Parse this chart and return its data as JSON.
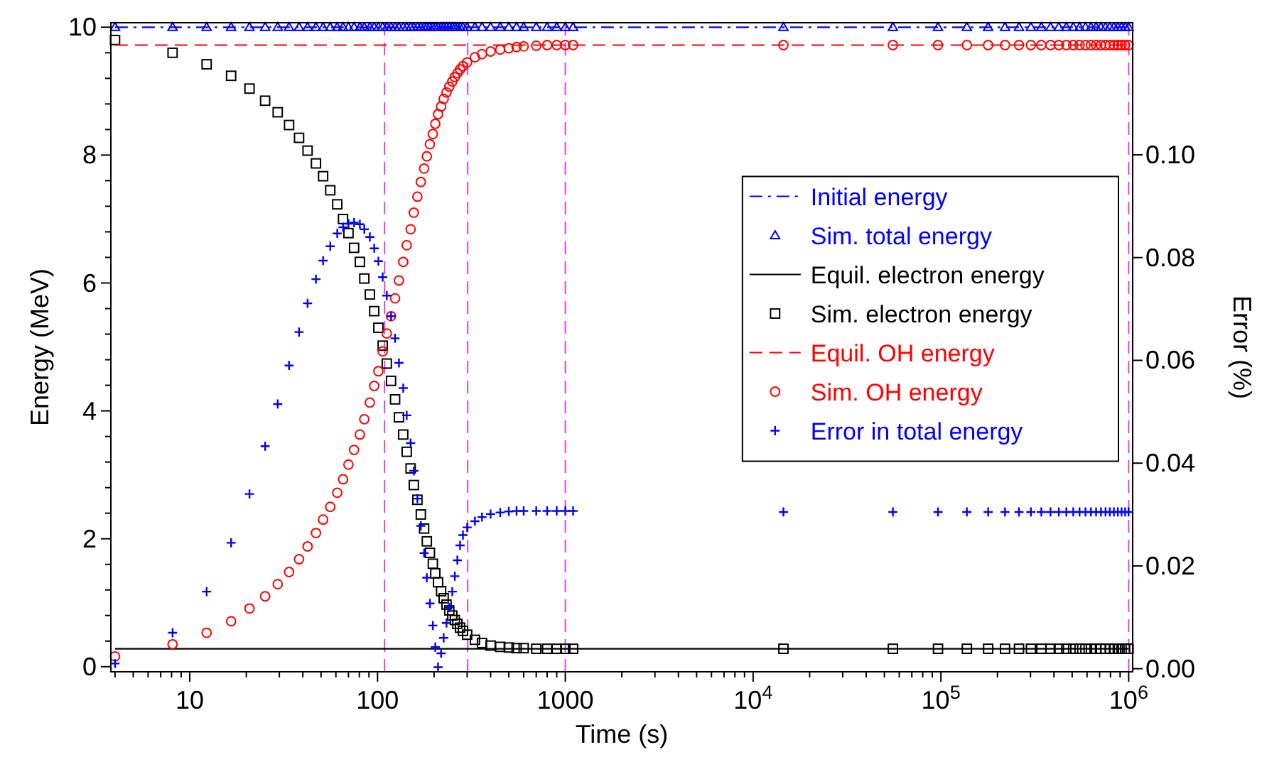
{
  "chart_data": {
    "type": "scatter",
    "xlabel": "Time (s)",
    "ylabel": "Energy (MeV)",
    "y2label": "Error (%)",
    "log": "x",
    "legend": "right",
    "grid": false,
    "xlim": [
      3.8,
      1050000
    ],
    "ylim": [
      -0.08,
      10.07
    ],
    "y2lim": [
      -0.0006,
      0.1257
    ],
    "xticks": [
      {
        "value": 4,
        "label": null
      },
      {
        "value": 5,
        "label": null
      },
      {
        "value": 6,
        "label": null
      },
      {
        "value": 7,
        "label": null
      },
      {
        "value": 8,
        "label": null
      },
      {
        "value": 9,
        "label": null
      },
      10,
      {
        "value": 20,
        "label": null
      },
      {
        "value": 30,
        "label": null
      },
      {
        "value": 40,
        "label": null
      },
      {
        "value": 50,
        "label": null
      },
      {
        "value": 60,
        "label": null
      },
      {
        "value": 70,
        "label": null
      },
      {
        "value": 80,
        "label": null
      },
      {
        "value": 90,
        "label": null
      },
      100,
      {
        "value": 200,
        "label": null
      },
      {
        "value": 300,
        "label": null
      },
      {
        "value": 400,
        "label": null
      },
      {
        "value": 500,
        "label": null
      },
      {
        "value": 600,
        "label": null
      },
      {
        "value": 700,
        "label": null
      },
      {
        "value": 800,
        "label": null
      },
      {
        "value": 900,
        "label": null
      },
      1000,
      {
        "value": 2000,
        "label": null
      },
      {
        "value": 3000,
        "label": null
      },
      {
        "value": 4000,
        "label": null
      },
      {
        "value": 5000,
        "label": null
      },
      {
        "value": 6000,
        "label": null
      },
      {
        "value": 7000,
        "label": null
      },
      {
        "value": 8000,
        "label": null
      },
      {
        "value": 9000,
        "label": null
      },
      {
        "value": 10000,
        "label": "10$^{4}$"
      },
      {
        "value": 20000,
        "label": null
      },
      {
        "value": 30000,
        "label": null
      },
      {
        "value": 40000,
        "label": null
      },
      {
        "value": 50000,
        "label": null
      },
      {
        "value": 60000,
        "label": null
      },
      {
        "value": 70000,
        "label": null
      },
      {
        "value": 80000,
        "label": null
      },
      {
        "value": 90000,
        "label": null
      },
      {
        "value": 100000,
        "label": "10$^{5}$"
      },
      {
        "value": 200000,
        "label": null
      },
      {
        "value": 300000,
        "label": null
      },
      {
        "value": 400000,
        "label": null
      },
      {
        "value": 500000,
        "label": null
      },
      {
        "value": 600000,
        "label": null
      },
      {
        "value": 700000,
        "label": null
      },
      {
        "value": 800000,
        "label": null
      },
      {
        "value": 900000,
        "label": null
      },
      {
        "value": 1000000,
        "label": "10$^{6}$"
      }
    ],
    "yticks": [
      0,
      {
        "value": 0.4,
        "label": null
      },
      {
        "value": 0.8,
        "label": null
      },
      {
        "value": 1.2,
        "label": null
      },
      {
        "value": 1.6,
        "label": null
      },
      2,
      {
        "value": 2.4,
        "label": null
      },
      {
        "value": 2.8,
        "label": null
      },
      {
        "value": 3.2,
        "label": null
      },
      {
        "value": 3.6,
        "label": null
      },
      4,
      {
        "value": 4.4,
        "label": null
      },
      {
        "value": 4.8,
        "label": null
      },
      {
        "value": 5.2,
        "label": null
      },
      {
        "value": 5.6,
        "label": null
      },
      6,
      {
        "value": 6.4,
        "label": null
      },
      {
        "value": 6.8,
        "label": null
      },
      {
        "value": 7.2,
        "label": null
      },
      {
        "value": 7.6,
        "label": null
      },
      8,
      {
        "value": 8.4,
        "label": null
      },
      {
        "value": 8.8,
        "label": null
      },
      {
        "value": 9.2,
        "label": null
      },
      {
        "value": 9.6,
        "label": null
      },
      10
    ],
    "y2ticks": [
      {
        "value": 0,
        "label": "0.00"
      },
      {
        "value": 0.02,
        "label": "0.02"
      },
      {
        "value": 0.04,
        "label": "0.04"
      },
      {
        "value": 0.06,
        "label": "0.06"
      },
      {
        "value": 0.08,
        "label": "0.08"
      },
      {
        "value": 0.1,
        "label": "0.10"
      }
    ],
    "x": [
      4,
      8.1,
      12.3,
      16.6,
      20.8,
      25.2,
      29.4,
      33.8,
      38.2,
      42.4,
      47,
      51.3,
      56,
      61,
      65.5,
      70,
      75,
      80.5,
      85,
      91,
      96,
      101,
      106.5,
      112,
      118,
      124,
      130,
      137,
      143,
      150,
      156,
      163,
      170,
      177,
      183,
      190,
      197,
      203,
      210,
      218,
      225,
      233,
      241,
      250,
      258,
      266,
      275,
      285,
      300,
      330,
      360,
      400,
      450,
      500,
      550,
      600,
      700,
      800,
      900,
      1000,
      1100,
      14500,
      55500,
      96500,
      137500,
      178500,
      219500,
      260500,
      301500,
      342500,
      383500,
      424500,
      465500,
      506500,
      547500,
      588500,
      629500,
      670500,
      711500,
      752500,
      793500,
      834500,
      875500,
      916500,
      957500,
      998500
    ],
    "ref_lines": [
      {
        "axis": "x",
        "value": 109,
        "color": "#dd44dd",
        "line_style": "dashed"
      },
      {
        "axis": "x",
        "value": 302,
        "color": "#dd44dd",
        "line_style": "dashed"
      },
      {
        "axis": "x",
        "value": 1000,
        "color": "#dd44dd",
        "line_style": "dashed"
      },
      {
        "axis": "x",
        "value": 1000000,
        "color": "#dd44dd",
        "line_style": "dashed"
      }
    ],
    "series": [
      {
        "name": "Initial energy",
        "type": "line",
        "color": "#0000ff",
        "line_style": "dashdot",
        "marker": "none",
        "values": [
          10,
          10,
          10,
          10,
          10,
          10,
          10,
          10,
          10,
          10,
          10,
          10,
          10,
          10,
          10,
          10,
          10,
          10,
          10,
          10,
          10,
          10,
          10,
          10,
          10,
          10,
          10,
          10,
          10,
          10,
          10,
          10,
          10,
          10,
          10,
          10,
          10,
          10,
          10,
          10,
          10,
          10,
          10,
          10,
          10,
          10,
          10,
          10,
          10,
          10,
          10,
          10,
          10,
          10,
          10,
          10,
          10,
          10,
          10,
          10,
          10,
          10,
          10,
          10,
          10,
          10,
          10,
          10,
          10,
          10,
          10,
          10,
          10,
          10,
          10,
          10,
          10,
          10,
          10,
          10,
          10,
          10,
          10,
          10,
          10,
          10
        ]
      },
      {
        "name": "Sim. total energy",
        "color": "#0000ff",
        "marker": "triangle",
        "values": [
          10,
          10,
          10,
          10,
          10,
          10,
          10,
          10,
          10,
          10,
          10,
          10,
          10,
          10,
          10,
          10,
          10,
          10,
          10,
          10,
          10,
          10,
          10,
          10,
          10,
          10,
          10,
          10,
          10,
          10,
          10,
          10,
          10,
          10,
          10,
          10,
          10,
          10,
          10,
          10,
          10,
          10,
          10,
          10,
          10,
          10,
          10,
          10,
          10,
          10,
          10,
          10,
          10,
          10,
          10,
          10,
          10,
          10,
          10,
          10,
          10,
          10,
          10,
          10,
          10,
          10,
          10,
          10,
          10,
          10,
          10,
          10,
          10,
          10,
          10,
          10,
          10,
          10,
          10,
          10,
          10,
          10,
          10,
          10,
          10,
          10
        ]
      },
      {
        "name": "Equil. electron energy",
        "type": "line",
        "color": "#000000",
        "line_style": "solid",
        "marker": "none",
        "values": [
          0.28,
          0.28,
          0.28,
          0.28,
          0.28,
          0.28,
          0.28,
          0.28,
          0.28,
          0.28,
          0.28,
          0.28,
          0.28,
          0.28,
          0.28,
          0.28,
          0.28,
          0.28,
          0.28,
          0.28,
          0.28,
          0.28,
          0.28,
          0.28,
          0.28,
          0.28,
          0.28,
          0.28,
          0.28,
          0.28,
          0.28,
          0.28,
          0.28,
          0.28,
          0.28,
          0.28,
          0.28,
          0.28,
          0.28,
          0.28,
          0.28,
          0.28,
          0.28,
          0.28,
          0.28,
          0.28,
          0.28,
          0.28,
          0.28,
          0.28,
          0.28,
          0.28,
          0.28,
          0.28,
          0.28,
          0.28,
          0.28,
          0.28,
          0.28,
          0.28,
          0.28,
          0.28,
          0.28,
          0.28,
          0.28,
          0.28,
          0.28,
          0.28,
          0.28,
          0.28,
          0.28,
          0.28,
          0.28,
          0.28,
          0.28,
          0.28,
          0.28,
          0.28,
          0.28,
          0.28,
          0.28,
          0.28,
          0.28,
          0.28,
          0.28,
          0.28
        ]
      },
      {
        "name": "Sim. electron energy",
        "color": "#000000",
        "marker": "square",
        "values": [
          9.8,
          9.6,
          9.42,
          9.24,
          9.04,
          8.85,
          8.67,
          8.47,
          8.27,
          8.07,
          7.87,
          7.67,
          7.45,
          7.23,
          7.0,
          6.78,
          6.55,
          6.33,
          6.07,
          5.82,
          5.56,
          5.3,
          5.02,
          4.74,
          4.47,
          4.18,
          3.9,
          3.63,
          3.36,
          3.1,
          2.84,
          2.61,
          2.38,
          2.16,
          1.96,
          1.78,
          1.61,
          1.46,
          1.32,
          1.18,
          1.07,
          0.97,
          0.88,
          0.8,
          0.73,
          0.67,
          0.61,
          0.56,
          0.5,
          0.42,
          0.37,
          0.33,
          0.31,
          0.3,
          0.29,
          0.29,
          0.28,
          0.28,
          0.28,
          0.28,
          0.28,
          0.28,
          0.28,
          0.28,
          0.28,
          0.28,
          0.28,
          0.28,
          0.28,
          0.28,
          0.28,
          0.28,
          0.28,
          0.28,
          0.28,
          0.28,
          0.28,
          0.28,
          0.28,
          0.28,
          0.28,
          0.28,
          0.28,
          0.28,
          0.28,
          0.28
        ]
      },
      {
        "name": "Equil. OH energy",
        "type": "line",
        "color": "#ff0000",
        "line_style": "dashed",
        "marker": "none",
        "values": [
          9.72,
          9.72,
          9.72,
          9.72,
          9.72,
          9.72,
          9.72,
          9.72,
          9.72,
          9.72,
          9.72,
          9.72,
          9.72,
          9.72,
          9.72,
          9.72,
          9.72,
          9.72,
          9.72,
          9.72,
          9.72,
          9.72,
          9.72,
          9.72,
          9.72,
          9.72,
          9.72,
          9.72,
          9.72,
          9.72,
          9.72,
          9.72,
          9.72,
          9.72,
          9.72,
          9.72,
          9.72,
          9.72,
          9.72,
          9.72,
          9.72,
          9.72,
          9.72,
          9.72,
          9.72,
          9.72,
          9.72,
          9.72,
          9.72,
          9.72,
          9.72,
          9.72,
          9.72,
          9.72,
          9.72,
          9.72,
          9.72,
          9.72,
          9.72,
          9.72,
          9.72,
          9.72,
          9.72,
          9.72,
          9.72,
          9.72,
          9.72,
          9.72,
          9.72,
          9.72,
          9.72,
          9.72,
          9.72,
          9.72,
          9.72,
          9.72,
          9.72,
          9.72,
          9.72,
          9.72,
          9.72,
          9.72,
          9.72,
          9.72,
          9.72,
          9.72
        ]
      },
      {
        "name": "Sim. OH energy",
        "color": "#ff0000",
        "marker": "circle",
        "values": [
          0.16,
          0.35,
          0.53,
          0.71,
          0.91,
          1.1,
          1.29,
          1.48,
          1.68,
          1.88,
          2.09,
          2.3,
          2.5,
          2.72,
          2.93,
          3.16,
          3.39,
          3.63,
          3.87,
          4.13,
          4.39,
          4.62,
          4.93,
          5.21,
          5.48,
          5.76,
          6.04,
          6.33,
          6.59,
          6.84,
          7.1,
          7.35,
          7.58,
          7.79,
          7.98,
          8.17,
          8.33,
          8.49,
          8.64,
          8.76,
          8.88,
          8.98,
          9.07,
          9.15,
          9.22,
          9.28,
          9.34,
          9.39,
          9.45,
          9.53,
          9.58,
          9.62,
          9.65,
          9.67,
          9.69,
          9.7,
          9.71,
          9.72,
          9.72,
          9.72,
          9.72,
          9.72,
          9.72,
          9.72,
          9.72,
          9.72,
          9.72,
          9.72,
          9.72,
          9.72,
          9.72,
          9.72,
          9.72,
          9.72,
          9.72,
          9.72,
          9.72,
          9.72,
          9.72,
          9.72,
          9.72,
          9.72,
          9.72,
          9.72,
          9.72,
          9.72
        ]
      },
      {
        "name": "Error in total energy",
        "color": "#0000ff",
        "marker": "cross",
        "axis": "y2",
        "values": [
          0.001,
          0.007,
          0.015,
          0.0245,
          0.034,
          0.0433,
          0.0515,
          0.059,
          0.0655,
          0.0711,
          0.0758,
          0.0794,
          0.0822,
          0.0847,
          0.0859,
          0.0866,
          0.0868,
          0.0865,
          0.0855,
          0.084,
          0.0818,
          0.0793,
          0.0762,
          0.0726,
          0.0686,
          0.0643,
          0.0595,
          0.0546,
          0.0493,
          0.0439,
          0.0385,
          0.0331,
          0.0278,
          0.0225,
          0.0177,
          0.0127,
          0.0084,
          0.0042,
          0.0003,
          0.003,
          0.006,
          0.0089,
          0.0119,
          0.015,
          0.018,
          0.0211,
          0.024,
          0.026,
          0.0275,
          0.0287,
          0.0295,
          0.0301,
          0.0304,
          0.0306,
          0.0307,
          0.0307,
          0.0307,
          0.0307,
          0.0307,
          0.0307,
          0.0307,
          0.0305,
          0.0305,
          0.0305,
          0.0305,
          0.0305,
          0.0305,
          0.0305,
          0.0305,
          0.0305,
          0.0305,
          0.0305,
          0.0305,
          0.0305,
          0.0305,
          0.0305,
          0.0305,
          0.0305,
          0.0305,
          0.0305,
          0.0305,
          0.0305,
          0.0305,
          0.0305,
          0.0305,
          0.0305
        ]
      }
    ]
  }
}
